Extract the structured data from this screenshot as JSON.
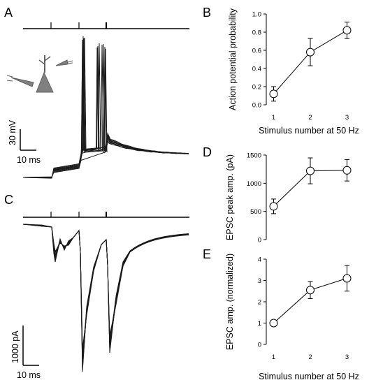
{
  "panels": {
    "A": "A",
    "B": "B",
    "C": "C",
    "D": "D",
    "E": "E"
  },
  "scale_bars": {
    "a_voltage": "30 mV",
    "a_time": "10 ms",
    "c_current": "1000 pA",
    "c_time": "10 ms"
  },
  "colors": {
    "ink": "#000000",
    "trace": "#1a1a1a",
    "marker_fill": "#ffffff",
    "neuron_gray": "#808080"
  },
  "chart_data": [
    {
      "panel": "B",
      "type": "line",
      "x": [
        1,
        2,
        3
      ],
      "values": [
        0.12,
        0.58,
        0.82
      ],
      "err": [
        0.08,
        0.15,
        0.09
      ],
      "ylabel": "Action potential probability",
      "xlabel": "Stimulus number at 50 Hz",
      "xlim": [
        0.8,
        3.2
      ],
      "ylim": [
        0,
        1.0
      ],
      "xticks": [
        "1",
        "2",
        "3"
      ],
      "yticks": [
        "0.0",
        "0.2",
        "0.4",
        "0.6",
        "0.8",
        "1.0"
      ],
      "grid": false
    },
    {
      "panel": "D",
      "type": "line",
      "x": [
        1,
        2,
        3
      ],
      "values": [
        590,
        1220,
        1230
      ],
      "err": [
        130,
        230,
        190
      ],
      "ylabel": "EPSC peak amp. (pA)",
      "xlabel": "",
      "xlim": [
        0.8,
        3.2
      ],
      "ylim": [
        0,
        1500
      ],
      "xticks": [],
      "yticks": [
        "0",
        "500",
        "1000",
        "1500"
      ],
      "grid": false
    },
    {
      "panel": "E",
      "type": "line",
      "x": [
        1,
        2,
        3
      ],
      "values": [
        1.0,
        2.55,
        3.1
      ],
      "err": [
        0.0,
        0.4,
        0.6
      ],
      "ylabel": "EPSC amp. (normalized)",
      "xlabel": "Stimulus number at 50 Hz",
      "xlim": [
        0.8,
        3.2
      ],
      "ylim": [
        0,
        4
      ],
      "xticks": [
        "1",
        "2",
        "3"
      ],
      "yticks": [
        "0",
        "1",
        "2",
        "3",
        "4"
      ],
      "grid": false
    }
  ]
}
